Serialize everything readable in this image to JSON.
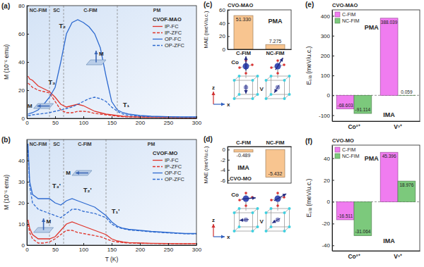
{
  "chart_data": [
    {
      "type": "line",
      "panel": "(a)",
      "legend_title": "CVOF-MAO",
      "legend": "upper right",
      "y_label": "M (10⁻⁶ emu)",
      "xlim": [
        0,
        300
      ],
      "xticks": [
        0,
        50,
        100,
        150,
        200,
        250,
        300
      ],
      "ylim": [
        0,
        80
      ],
      "yticks": [
        0,
        20,
        40,
        60,
        80
      ],
      "regions": [
        "NC-FIM",
        "SC",
        "C-FIM",
        "PM"
      ],
      "vlines": [
        40,
        65,
        160
      ],
      "annotations": [
        {
          "text": "T₃",
          "x": 38,
          "y": 24
        },
        {
          "text": "T₂",
          "x": 57,
          "y": 64
        },
        {
          "text": "T₁",
          "x": 170,
          "y": 8
        }
      ],
      "insets": [
        {
          "label": "M",
          "x": 12,
          "y": 7
        },
        {
          "label": "M",
          "x": 105,
          "y": 38
        }
      ],
      "x": [
        2,
        5,
        10,
        20,
        30,
        40,
        50,
        60,
        70,
        80,
        90,
        100,
        110,
        120,
        130,
        140,
        150,
        160,
        170,
        180,
        200,
        220,
        250,
        280,
        300
      ],
      "series": [
        {
          "name": "IP-FC",
          "color": "#e0352b",
          "line_style": "solid",
          "values": [
            30,
            28,
            27,
            23,
            21,
            19,
            15,
            10,
            8,
            9,
            10,
            9,
            7,
            5,
            4,
            3,
            2.5,
            2,
            1.5,
            1.2,
            1,
            0.8,
            0.7,
            0.6,
            0.6
          ]
        },
        {
          "name": "IP-ZFC",
          "color": "#e0352b",
          "line_style": "dashed",
          "values": [
            25,
            24,
            22,
            20,
            19,
            18,
            12,
            6,
            4,
            4,
            5,
            5,
            4.5,
            3.5,
            3,
            2.5,
            2,
            1.5,
            1.2,
            1,
            0.8,
            0.7,
            0.6,
            0.5,
            0.5
          ]
        },
        {
          "name": "OP-FC",
          "color": "#2f6bd0",
          "line_style": "solid",
          "values": [
            3,
            3.5,
            4,
            6,
            10,
            15,
            22,
            40,
            60,
            68,
            70,
            68,
            65,
            60,
            50,
            30,
            12,
            6,
            4,
            3,
            2,
            1.5,
            1.2,
            1,
            1
          ]
        },
        {
          "name": "OP-ZFC",
          "color": "#2f6bd0",
          "line_style": "dashed",
          "values": [
            2,
            2,
            2.5,
            3,
            3.5,
            4,
            5,
            6,
            7,
            8,
            10,
            12,
            14,
            15,
            14,
            12,
            8,
            5,
            3,
            2,
            1.5,
            1.2,
            1,
            0.8,
            0.8
          ]
        }
      ]
    },
    {
      "type": "line",
      "panel": "(b)",
      "legend_title": "CVOF-MO",
      "legend": "upper right",
      "y_label": "M (10⁻⁶ emu)",
      "x_label": "T (K)",
      "xlim": [
        0,
        300
      ],
      "xticks": [
        0,
        50,
        100,
        150,
        200,
        250,
        300
      ],
      "ylim": [
        0,
        50
      ],
      "yticks": [
        0,
        10,
        20,
        30,
        40
      ],
      "regions": [
        "NC-FIM",
        "SC",
        "C-FIM",
        "PM"
      ],
      "vlines": [
        40,
        65,
        140
      ],
      "annotations": [
        {
          "text": "T₃'",
          "x": 45,
          "y": 27
        },
        {
          "text": "T₂'",
          "x": 100,
          "y": 25
        },
        {
          "text": "T₁'",
          "x": 150,
          "y": 15
        }
      ],
      "insets": [
        {
          "label": "M",
          "x": 12,
          "y": 6
        },
        {
          "label": "M",
          "x": 80,
          "y": 33
        }
      ],
      "x": [
        2,
        5,
        10,
        20,
        30,
        40,
        50,
        60,
        70,
        80,
        90,
        100,
        110,
        120,
        130,
        140,
        150,
        160,
        170,
        180,
        200,
        220,
        250,
        280,
        300
      ],
      "series": [
        {
          "name": "IP-FC",
          "color": "#e0352b",
          "line_style": "solid",
          "values": [
            12,
            8,
            5,
            3,
            3,
            3,
            4,
            7,
            10,
            11,
            10,
            9,
            8,
            7,
            6,
            5,
            3,
            2,
            1.5,
            1.2,
            1,
            0.9,
            0.8,
            0.7,
            0.7
          ]
        },
        {
          "name": "IP-ZFC",
          "color": "#e0352b",
          "line_style": "dashed",
          "values": [
            10,
            6,
            3,
            1,
            1,
            1.5,
            3,
            5,
            7,
            7,
            6,
            5.5,
            5,
            4.5,
            4,
            3,
            2,
            1.5,
            1.2,
            1,
            0.9,
            0.8,
            0.7,
            0.7,
            0.7
          ]
        },
        {
          "name": "OP-FC",
          "color": "#2f6bd0",
          "line_style": "solid",
          "values": [
            48,
            30,
            24,
            22,
            22,
            22,
            20,
            19,
            21,
            22,
            21,
            20,
            19,
            18,
            16,
            14,
            11,
            9,
            8,
            7.5,
            7,
            6.5,
            6,
            5.5,
            5.5
          ]
        },
        {
          "name": "OP-ZFC",
          "color": "#2f6bd0",
          "line_style": "dashed",
          "values": [
            45,
            28,
            20,
            17,
            16,
            15,
            14,
            13,
            15,
            17,
            17,
            16,
            15.5,
            15,
            14,
            13,
            10,
            8.5,
            7.8,
            7.2,
            6.8,
            6.3,
            5.8,
            5.4,
            5.3
          ]
        }
      ]
    },
    {
      "type": "bar",
      "panel": "(c)",
      "title": "CVO-MAO",
      "y_label": "MAE (meV/u.c.)",
      "categories": [
        "C-FIM",
        "NC-FIM"
      ],
      "values": [
        51.33,
        7.275
      ],
      "value_labels": [
        "51.330",
        "7.275"
      ],
      "data_labels": true,
      "color": "#f8c590",
      "ylim": [
        0,
        60
      ],
      "yticks": [
        0,
        20,
        40,
        60
      ],
      "annotations": [
        {
          "text": "PMA",
          "x": 1,
          "y": 40
        }
      ],
      "structure_labels": [
        "Co",
        "V",
        "z",
        "x"
      ]
    },
    {
      "type": "bar",
      "panel": "(d)",
      "title": "CVO-MO",
      "y_label": "MAE (meV/u.c.)",
      "categories": [
        "C-FIM",
        "NC-FIM"
      ],
      "values": [
        -0.489,
        -5.432
      ],
      "data_labels": true,
      "color": "#f8c590",
      "ylim": [
        -6.6,
        0.6
      ],
      "yticks": [
        -6,
        -4,
        -2,
        0
      ],
      "annotations": [
        {
          "text": "IMA",
          "x": 0,
          "y": -4
        }
      ],
      "structure_labels": [
        "Co",
        "V",
        "z",
        "x"
      ]
    },
    {
      "type": "bar",
      "panel": "(e)",
      "title": "CVO-MAO",
      "y_label": "Eₛᵢₐ (meV/u.c.)",
      "categories": [
        "Co²⁺",
        "V³⁺"
      ],
      "series": [
        {
          "name": "C-FIM",
          "color": "#f07cf0",
          "values": [
            -68.603,
            388.039
          ]
        },
        {
          "name": "NC-FIM",
          "color": "#7cc97c",
          "values": [
            -91.114,
            0.059
          ]
        }
      ],
      "data_labels": true,
      "legend": "upper left",
      "ylim": [
        -130,
        430
      ],
      "yticks": [
        -100,
        0,
        100,
        200,
        300,
        400
      ],
      "annotations": [
        {
          "text": "PMA",
          "x": 0.4,
          "y": 330
        },
        {
          "text": "IMA",
          "x": 0.8,
          "y": -110
        }
      ]
    },
    {
      "type": "bar",
      "panel": "(f)",
      "title": "CVO-MO",
      "y_label": "Eₛᵢₐ (meV/u.c.)",
      "categories": [
        "Co²⁺",
        "V³⁺"
      ],
      "series": [
        {
          "name": "C-FIM",
          "color": "#f07cf0",
          "values": [
            -16.511,
            45.396
          ]
        },
        {
          "name": "NC-FIM",
          "color": "#7cc97c",
          "values": [
            -31.064,
            18.976
          ]
        }
      ],
      "data_labels": true,
      "legend": "upper left",
      "ylim": [
        -45,
        52
      ],
      "yticks": [
        -40,
        -20,
        0,
        20,
        40
      ],
      "annotations": [
        {
          "text": "PMA",
          "x": 0.4,
          "y": 38
        },
        {
          "text": "IMA",
          "x": 0.8,
          "y": -38
        }
      ]
    }
  ]
}
